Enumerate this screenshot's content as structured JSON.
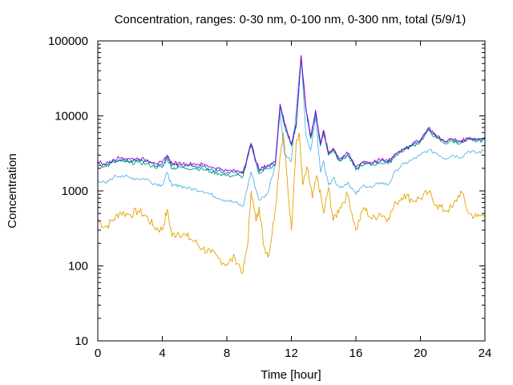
{
  "chart_data": {
    "type": "line",
    "title": "Concentration, ranges: 0-30 nm, 0-100 nm, 0-300 nm, total (5/9/1)",
    "xlabel": "Time [hour]",
    "ylabel": "Concentration",
    "xlim": [
      0,
      24
    ],
    "ylim": [
      10,
      100000
    ],
    "yscale": "log",
    "grid": false,
    "legend": "none",
    "x_ticks": [
      0,
      4,
      8,
      12,
      16,
      20,
      24
    ],
    "x_tick_labels": [
      "0",
      "4",
      "8",
      "12",
      "16",
      "20",
      "24"
    ],
    "y_ticks": [
      10,
      100,
      1000,
      10000,
      100000
    ],
    "y_tick_labels": [
      "10",
      "100",
      "1000",
      "10000",
      "100000"
    ],
    "series": [
      {
        "color": "#e69f00",
        "points": [
          [
            0,
            400
          ],
          [
            0.5,
            330
          ],
          [
            1,
            420
          ],
          [
            1.4,
            520
          ],
          [
            2,
            480
          ],
          [
            2.5,
            540
          ],
          [
            3,
            460
          ],
          [
            3.5,
            330
          ],
          [
            4,
            300
          ],
          [
            4.3,
            560
          ],
          [
            4.6,
            250
          ],
          [
            5,
            280
          ],
          [
            5.5,
            250
          ],
          [
            6,
            210
          ],
          [
            6.5,
            170
          ],
          [
            7,
            150
          ],
          [
            7.5,
            125
          ],
          [
            8,
            105
          ],
          [
            8.5,
            130
          ],
          [
            9,
            82
          ],
          [
            9.3,
            200
          ],
          [
            9.5,
            1000
          ],
          [
            9.8,
            400
          ],
          [
            10,
            620
          ],
          [
            10.3,
            180
          ],
          [
            10.6,
            140
          ],
          [
            11,
            560
          ],
          [
            11.3,
            3000
          ],
          [
            11.5,
            6000
          ],
          [
            11.7,
            1800
          ],
          [
            12,
            300
          ],
          [
            12.3,
            4500
          ],
          [
            12.5,
            5500
          ],
          [
            12.7,
            1200
          ],
          [
            13,
            2000
          ],
          [
            13.3,
            800
          ],
          [
            13.6,
            1600
          ],
          [
            14,
            500
          ],
          [
            14.3,
            1100
          ],
          [
            14.6,
            400
          ],
          [
            15,
            600
          ],
          [
            15.5,
            900
          ],
          [
            16,
            300
          ],
          [
            16.5,
            600
          ],
          [
            17,
            420
          ],
          [
            17.5,
            500
          ],
          [
            18,
            430
          ],
          [
            18.5,
            700
          ],
          [
            19,
            900
          ],
          [
            19.5,
            750
          ],
          [
            20,
            800
          ],
          [
            20.5,
            950
          ],
          [
            21,
            650
          ],
          [
            21.5,
            550
          ],
          [
            22,
            600
          ],
          [
            22.5,
            1000
          ],
          [
            23,
            500
          ],
          [
            23.5,
            450
          ],
          [
            24,
            480
          ]
        ]
      },
      {
        "color": "#56b4e9",
        "points": [
          [
            0,
            1400
          ],
          [
            0.5,
            1250
          ],
          [
            1,
            1550
          ],
          [
            1.5,
            1600
          ],
          [
            2,
            1500
          ],
          [
            2.5,
            1450
          ],
          [
            3,
            1450
          ],
          [
            3.5,
            1250
          ],
          [
            4,
            1200
          ],
          [
            4.3,
            1750
          ],
          [
            4.6,
            1150
          ],
          [
            5,
            1200
          ],
          [
            5.5,
            1100
          ],
          [
            6,
            1050
          ],
          [
            6.5,
            1000
          ],
          [
            7,
            900
          ],
          [
            7.5,
            800
          ],
          [
            8,
            750
          ],
          [
            8.5,
            700
          ],
          [
            9,
            620
          ],
          [
            9.5,
            1800
          ],
          [
            10,
            750
          ],
          [
            10.5,
            900
          ],
          [
            11,
            2200
          ],
          [
            11.3,
            11000
          ],
          [
            11.6,
            3000
          ],
          [
            12,
            2500
          ],
          [
            12.3,
            12000
          ],
          [
            12.6,
            65000
          ],
          [
            12.9,
            5500
          ],
          [
            13.2,
            3500
          ],
          [
            13.5,
            10000
          ],
          [
            13.8,
            1800
          ],
          [
            14,
            2500
          ],
          [
            14.3,
            1200
          ],
          [
            14.6,
            1500
          ],
          [
            15,
            1100
          ],
          [
            15.5,
            1300
          ],
          [
            16,
            900
          ],
          [
            16.5,
            1200
          ],
          [
            17,
            1100
          ],
          [
            17.5,
            1300
          ],
          [
            18,
            1200
          ],
          [
            18.5,
            1900
          ],
          [
            19,
            2300
          ],
          [
            19.5,
            2600
          ],
          [
            20,
            3000
          ],
          [
            20.5,
            3500
          ],
          [
            21,
            3200
          ],
          [
            21.5,
            2700
          ],
          [
            22,
            3000
          ],
          [
            22.5,
            2800
          ],
          [
            23,
            3400
          ],
          [
            23.5,
            3200
          ],
          [
            24,
            3500
          ]
        ]
      },
      {
        "color": "#009e73",
        "points": [
          [
            0,
            2250
          ],
          [
            0.5,
            2100
          ],
          [
            1,
            2400
          ],
          [
            1.5,
            2500
          ],
          [
            2,
            2350
          ],
          [
            2.5,
            2400
          ],
          [
            3,
            2300
          ],
          [
            3.5,
            2100
          ],
          [
            4,
            2050
          ],
          [
            4.3,
            2700
          ],
          [
            4.6,
            2000
          ],
          [
            5,
            2050
          ],
          [
            5.5,
            2000
          ],
          [
            6,
            2000
          ],
          [
            6.5,
            1950
          ],
          [
            7,
            1800
          ],
          [
            7.5,
            1700
          ],
          [
            8,
            1600
          ],
          [
            8.5,
            1600
          ],
          [
            9,
            1550
          ],
          [
            9.5,
            4000
          ],
          [
            10,
            1700
          ],
          [
            10.5,
            2000
          ],
          [
            11,
            2200
          ],
          [
            11.3,
            13000
          ],
          [
            11.6,
            7000
          ],
          [
            12,
            4000
          ],
          [
            12.3,
            7000
          ],
          [
            12.6,
            60000
          ],
          [
            12.9,
            12000
          ],
          [
            13.2,
            5000
          ],
          [
            13.5,
            11000
          ],
          [
            13.8,
            4000
          ],
          [
            14,
            6000
          ],
          [
            14.3,
            3000
          ],
          [
            14.6,
            3500
          ],
          [
            15,
            2500
          ],
          [
            15.5,
            3000
          ],
          [
            16,
            1900
          ],
          [
            16.5,
            2300
          ],
          [
            17,
            2200
          ],
          [
            17.5,
            2400
          ],
          [
            18,
            2300
          ],
          [
            18.5,
            3000
          ],
          [
            19,
            3500
          ],
          [
            19.5,
            4000
          ],
          [
            20,
            4500
          ],
          [
            20.5,
            6500
          ],
          [
            21,
            5000
          ],
          [
            21.5,
            4300
          ],
          [
            22,
            4600
          ],
          [
            22.5,
            4300
          ],
          [
            23,
            4800
          ],
          [
            23.5,
            4600
          ],
          [
            24,
            4800
          ]
        ]
      },
      {
        "color": "#0072b2",
        "points": [
          [
            0,
            2350
          ],
          [
            0.5,
            2200
          ],
          [
            1,
            2550
          ],
          [
            1.5,
            2650
          ],
          [
            2,
            2500
          ],
          [
            2.5,
            2550
          ],
          [
            3,
            2450
          ],
          [
            3.5,
            2250
          ],
          [
            4,
            2200
          ],
          [
            4.3,
            2850
          ],
          [
            4.6,
            2150
          ],
          [
            5,
            2200
          ],
          [
            5.5,
            2150
          ],
          [
            6,
            2150
          ],
          [
            6.5,
            2100
          ],
          [
            7,
            1950
          ],
          [
            7.5,
            1850
          ],
          [
            8,
            1750
          ],
          [
            8.5,
            1750
          ],
          [
            9,
            1700
          ],
          [
            9.5,
            4200
          ],
          [
            10,
            1800
          ],
          [
            10.5,
            2100
          ],
          [
            11,
            2300
          ],
          [
            11.3,
            14000
          ],
          [
            11.6,
            7500
          ],
          [
            12,
            4200
          ],
          [
            12.3,
            7500
          ],
          [
            12.6,
            63000
          ],
          [
            12.9,
            12500
          ],
          [
            13.2,
            5200
          ],
          [
            13.5,
            11500
          ],
          [
            13.8,
            4200
          ],
          [
            14,
            6200
          ],
          [
            14.3,
            3100
          ],
          [
            14.6,
            3600
          ],
          [
            15,
            2600
          ],
          [
            15.5,
            3100
          ],
          [
            16,
            2000
          ],
          [
            16.5,
            2400
          ],
          [
            17,
            2300
          ],
          [
            17.5,
            2500
          ],
          [
            18,
            2400
          ],
          [
            18.5,
            3100
          ],
          [
            19,
            3600
          ],
          [
            19.5,
            4100
          ],
          [
            20,
            4700
          ],
          [
            20.5,
            6800
          ],
          [
            21,
            5200
          ],
          [
            21.5,
            4500
          ],
          [
            22,
            4800
          ],
          [
            22.5,
            4500
          ],
          [
            23,
            5000
          ],
          [
            23.5,
            4800
          ],
          [
            24,
            5000
          ]
        ]
      },
      {
        "color": "#9400d3",
        "points": [
          [
            0,
            2450
          ],
          [
            0.5,
            2300
          ],
          [
            1,
            2650
          ],
          [
            1.5,
            2800
          ],
          [
            2,
            2650
          ],
          [
            2.5,
            2700
          ],
          [
            3,
            2600
          ],
          [
            3.5,
            2400
          ],
          [
            4,
            2350
          ],
          [
            4.3,
            3000
          ],
          [
            4.6,
            2300
          ],
          [
            5,
            2350
          ],
          [
            5.5,
            2300
          ],
          [
            6,
            2300
          ],
          [
            6.5,
            2250
          ],
          [
            7,
            2100
          ],
          [
            7.5,
            2000
          ],
          [
            8,
            1850
          ],
          [
            8.5,
            1850
          ],
          [
            9,
            1800
          ],
          [
            9.5,
            4300
          ],
          [
            10,
            1900
          ],
          [
            10.5,
            2200
          ],
          [
            11,
            2400
          ],
          [
            11.3,
            14500
          ],
          [
            11.6,
            7800
          ],
          [
            12,
            4300
          ],
          [
            12.3,
            7800
          ],
          [
            12.6,
            64000
          ],
          [
            12.9,
            13000
          ],
          [
            13.2,
            5400
          ],
          [
            13.5,
            12000
          ],
          [
            13.8,
            4300
          ],
          [
            14,
            6400
          ],
          [
            14.3,
            3200
          ],
          [
            14.6,
            3700
          ],
          [
            15,
            2700
          ],
          [
            15.5,
            3200
          ],
          [
            16,
            2100
          ],
          [
            16.5,
            2500
          ],
          [
            17,
            2400
          ],
          [
            17.5,
            2600
          ],
          [
            18,
            2500
          ],
          [
            18.5,
            3200
          ],
          [
            19,
            3700
          ],
          [
            19.5,
            4200
          ],
          [
            20,
            4800
          ],
          [
            20.5,
            7000
          ],
          [
            21,
            5400
          ],
          [
            21.5,
            4600
          ],
          [
            22,
            4900
          ],
          [
            22.5,
            4600
          ],
          [
            23,
            5100
          ],
          [
            23.5,
            4900
          ],
          [
            24,
            5100
          ]
        ]
      }
    ]
  }
}
